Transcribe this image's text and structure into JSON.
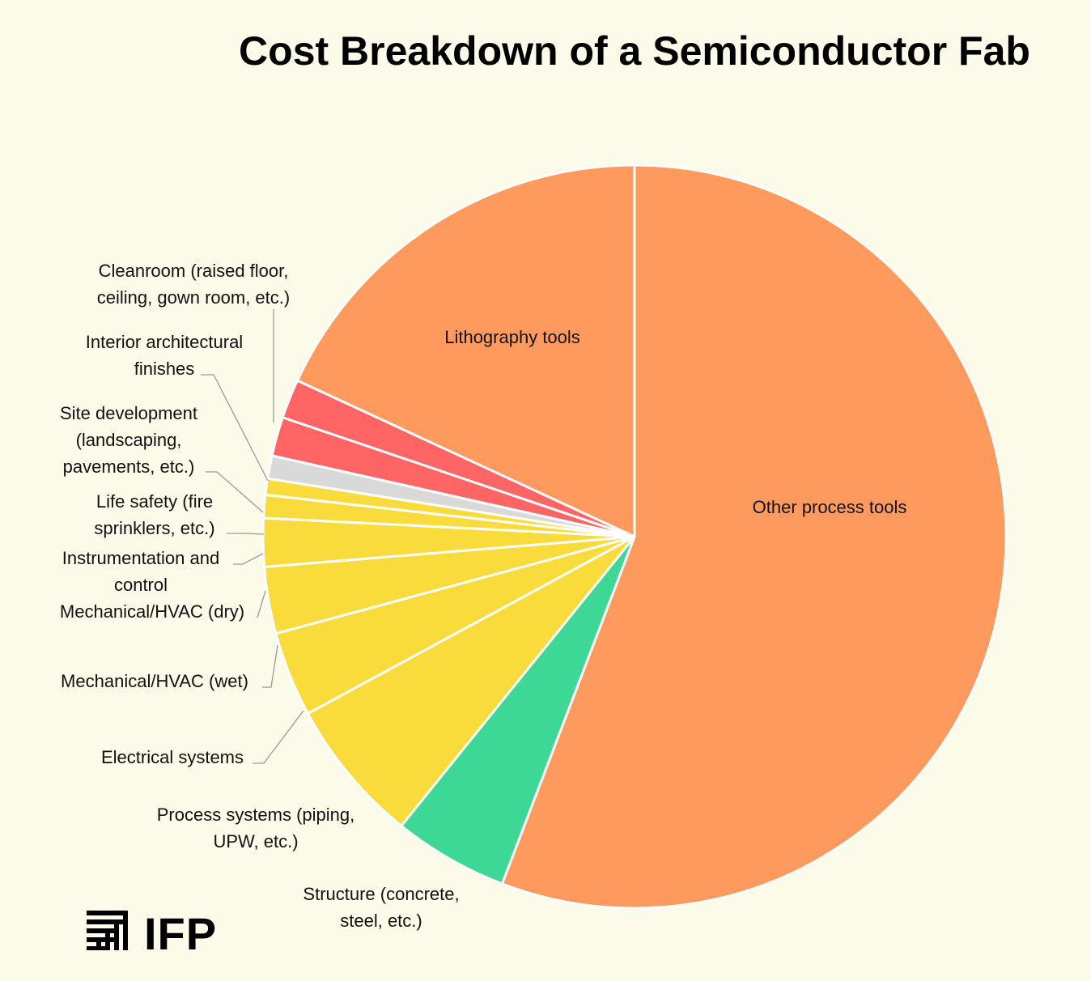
{
  "chart_data": {
    "type": "pie",
    "title": "Cost Breakdown of a Semiconductor Fab",
    "start_angle_deg": 0,
    "direction": "clockwise",
    "unit": "percent",
    "slices": [
      {
        "label": "Other process tools",
        "value": 55.8,
        "color": "#ff9a5e"
      },
      {
        "label": "Structure (concrete, steel, etc.)",
        "value": 5.0,
        "color": "#3dd896"
      },
      {
        "label": "Process systems (piping, UPW, etc.)",
        "value": 6.3,
        "color": "#f9dc3c"
      },
      {
        "label": "Electrical systems",
        "value": 3.7,
        "color": "#f9dc3c"
      },
      {
        "label": "Mechanical/HVAC (wet)",
        "value": 2.9,
        "color": "#f9dc3c"
      },
      {
        "label": "Mechanical/HVAC (dry)",
        "value": 2.1,
        "color": "#f9dc3c"
      },
      {
        "label": "Instrumentation and control",
        "value": 1.0,
        "color": "#f9dc3c"
      },
      {
        "label": "Life safety (fire sprinklers, etc.)",
        "value": 0.7,
        "color": "#f9dc3c"
      },
      {
        "label": "Site development (landscaping, pavements, etc.)",
        "value": 1.0,
        "color": "#d9d9d9"
      },
      {
        "label": "Interior architectural finishes",
        "value": 1.7,
        "color": "#ff6565"
      },
      {
        "label": "Cleanroom (raised floor, ceiling, gown room, etc.)",
        "value": 1.7,
        "color": "#ff6565"
      },
      {
        "label": "Lithography tools",
        "value": 18.1,
        "color": "#ff9a5e"
      }
    ],
    "label_lines": [
      [
        "Other process tools"
      ],
      [
        "Structure (concrete,",
        "steel, etc.)"
      ],
      [
        "Process systems (piping,",
        "UPW, etc.)"
      ],
      [
        "Electrical systems"
      ],
      [
        "Mechanical/HVAC (wet)"
      ],
      [
        "Mechanical/HVAC (dry)"
      ],
      [
        "Instrumentation and",
        "control"
      ],
      [
        "Life safety (fire",
        "sprinklers, etc.)"
      ],
      [
        "Site development",
        "(landscaping,",
        "pavements, etc.)"
      ],
      [
        "Interior architectural",
        "finishes"
      ],
      [
        "Cleanroom (raised floor,",
        "ceiling, gown room, etc.)"
      ],
      [
        "Lithography tools"
      ]
    ]
  },
  "branding": {
    "logo_text": "IFP",
    "icon": "ifp-stacked-bars-icon"
  }
}
